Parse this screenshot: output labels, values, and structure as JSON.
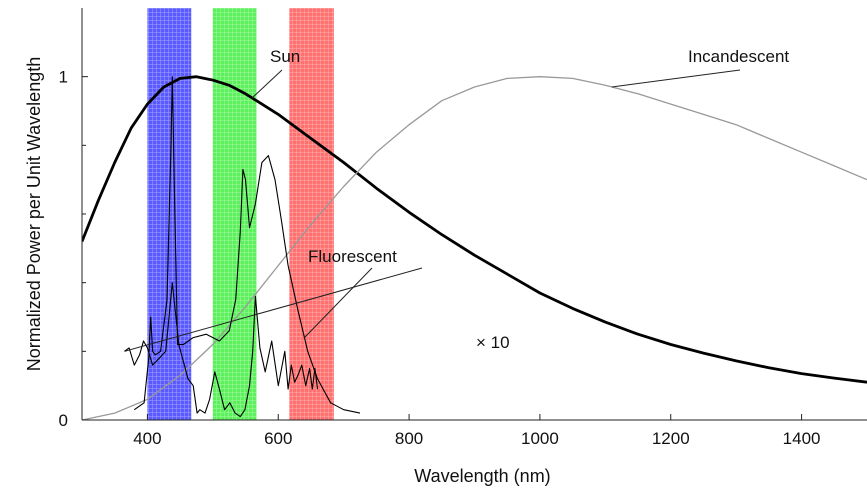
{
  "chart_data": {
    "type": "line",
    "title": "",
    "xlabel": "Wavelength (nm)",
    "ylabel": "Normalized Power per Unit Wavelength",
    "xlim": [
      300,
      1500
    ],
    "ylim": [
      0,
      1.2
    ],
    "x_ticks": [
      400,
      600,
      800,
      1000,
      1200,
      1400
    ],
    "y_ticks": [
      0,
      1
    ],
    "y_minor_ticks": [
      0.2,
      0.4,
      0.6,
      0.8
    ],
    "grid": false,
    "bands": [
      {
        "color": "#5a5aff",
        "from": 400,
        "to": 467
      },
      {
        "color": "#5cf05c",
        "from": 500,
        "to": 567
      },
      {
        "color": "#ff7070",
        "from": 617,
        "to": 685
      }
    ],
    "series": [
      {
        "name": "Sun",
        "color": "#000000",
        "x": [
          300,
          325,
          350,
          375,
          400,
          425,
          450,
          475,
          500,
          525,
          550,
          575,
          600,
          650,
          700,
          750,
          800,
          850,
          900,
          950,
          1000,
          1050,
          1100,
          1150,
          1200,
          1250,
          1300,
          1350,
          1400,
          1450,
          1500
        ],
        "y": [
          0.52,
          0.64,
          0.75,
          0.85,
          0.92,
          0.97,
          0.995,
          1.0,
          0.99,
          0.975,
          0.95,
          0.92,
          0.89,
          0.82,
          0.75,
          0.675,
          0.605,
          0.54,
          0.48,
          0.425,
          0.37,
          0.325,
          0.285,
          0.25,
          0.22,
          0.195,
          0.172,
          0.152,
          0.135,
          0.122,
          0.11
        ]
      },
      {
        "name": "Incandescent",
        "color": "#999999",
        "x": [
          300,
          350,
          400,
          450,
          500,
          550,
          600,
          650,
          700,
          750,
          800,
          850,
          900,
          950,
          1000,
          1050,
          1100,
          1150,
          1200,
          1250,
          1300,
          1350,
          1400,
          1450,
          1500
        ],
        "y": [
          0.0,
          0.02,
          0.06,
          0.13,
          0.22,
          0.33,
          0.45,
          0.57,
          0.68,
          0.78,
          0.86,
          0.93,
          0.97,
          0.995,
          1.0,
          0.995,
          0.975,
          0.95,
          0.92,
          0.89,
          0.86,
          0.82,
          0.78,
          0.74,
          0.7
        ]
      },
      {
        "name": "Fluorescent",
        "color": "#000000",
        "x": [
          380,
          395,
          402,
          405,
          408,
          412,
          420,
          430,
          436,
          438,
          441,
          446,
          455,
          470,
          490,
          510,
          525,
          535,
          542,
          546,
          550,
          556,
          565,
          575,
          585,
          595,
          605,
          615,
          630,
          645,
          660,
          680,
          700,
          725
        ],
        "y": [
          0.03,
          0.05,
          0.18,
          0.3,
          0.2,
          0.19,
          0.2,
          0.35,
          0.8,
          1.0,
          0.7,
          0.22,
          0.22,
          0.24,
          0.25,
          0.23,
          0.26,
          0.35,
          0.55,
          0.73,
          0.7,
          0.56,
          0.63,
          0.75,
          0.77,
          0.7,
          0.58,
          0.45,
          0.32,
          0.2,
          0.12,
          0.05,
          0.03,
          0.02
        ]
      },
      {
        "name": "Fluorescent ×10",
        "color": "#000000",
        "x": [
          365,
          372,
          380,
          388,
          394,
          400,
          408,
          418,
          428,
          438,
          448,
          455,
          462,
          470,
          476,
          480,
          488,
          495,
          503,
          510,
          518,
          526,
          534,
          542,
          549,
          556,
          561,
          565,
          572,
          580,
          590,
          600,
          610,
          615,
          620,
          625,
          630,
          636,
          642,
          648,
          652,
          656,
          660
        ],
        "y": [
          0.2,
          0.21,
          0.16,
          0.19,
          0.23,
          0.21,
          0.16,
          0.18,
          0.2,
          0.4,
          0.22,
          0.17,
          0.12,
          0.1,
          0.02,
          0.03,
          0.02,
          0.06,
          0.14,
          0.09,
          0.03,
          0.05,
          0.02,
          0.01,
          0.03,
          0.1,
          0.2,
          0.36,
          0.21,
          0.14,
          0.23,
          0.1,
          0.2,
          0.09,
          0.16,
          0.11,
          0.13,
          0.16,
          0.1,
          0.15,
          0.09,
          0.15,
          0.09
        ]
      }
    ],
    "annotations": [
      {
        "text": "Sun",
        "series": "Sun"
      },
      {
        "text": "Incandescent",
        "series": "Incandescent"
      },
      {
        "text": "Fluorescent",
        "series": "Fluorescent"
      },
      {
        "text": "× 10",
        "series": "Fluorescent ×10"
      }
    ]
  }
}
